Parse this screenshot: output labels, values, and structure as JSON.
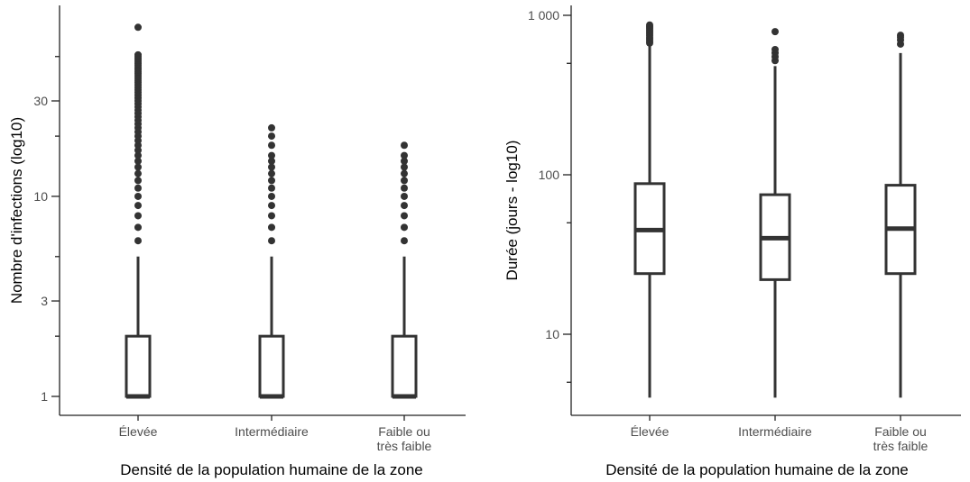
{
  "chart_data": [
    {
      "type": "box",
      "title": "",
      "xlabel": "Densité de la population humaine de la zone",
      "ylabel": "Nombre d'infections (log10)",
      "y_scale": "log10",
      "ylim": [
        0.95,
        90
      ],
      "y_ticks_major": [
        1,
        3,
        10,
        30
      ],
      "y_ticks_major_labels": [
        "1",
        "3",
        "10",
        "30"
      ],
      "y_ticks_minor": [
        2,
        5,
        20,
        50
      ],
      "categories": [
        {
          "label": "Élevée",
          "lines": [
            "Élevée"
          ],
          "min": 1,
          "q1": 1,
          "median": 1,
          "q3": 2,
          "max": 5,
          "outliers": [
            6,
            7,
            8,
            9,
            10,
            11,
            12,
            13,
            14,
            15,
            16,
            17,
            18,
            19,
            20,
            21,
            22,
            23,
            24,
            25,
            26,
            27,
            28,
            29,
            30,
            31,
            32,
            33,
            34,
            35,
            36,
            37,
            38,
            39,
            40,
            41,
            42,
            43,
            44,
            45,
            46,
            47,
            48,
            49,
            50,
            51,
            70
          ]
        },
        {
          "label": "Intermédiaire",
          "lines": [
            "Intermédiaire"
          ],
          "min": 1,
          "q1": 1,
          "median": 1,
          "q3": 2,
          "max": 5,
          "outliers": [
            6,
            7,
            8,
            9,
            10,
            11,
            12,
            13,
            14,
            15,
            16,
            18,
            20,
            22
          ]
        },
        {
          "label": "Faible ou très faible",
          "lines": [
            "Faible ou",
            "très faible"
          ],
          "min": 1,
          "q1": 1,
          "median": 1,
          "q3": 2,
          "max": 5,
          "outliers": [
            6,
            7,
            8,
            9,
            10,
            11,
            12,
            13,
            14,
            15,
            16,
            18
          ]
        }
      ]
    },
    {
      "type": "box",
      "title": "",
      "xlabel": "Densité de la population humaine de la zone",
      "ylabel": "Durée (jours - log10)",
      "y_scale": "log10",
      "ylim": [
        3,
        1050
      ],
      "y_ticks_major": [
        10,
        100,
        1000
      ],
      "y_ticks_major_labels": [
        "10",
        "100",
        "1 000"
      ],
      "y_ticks_minor": [
        5,
        50,
        500
      ],
      "categories": [
        {
          "label": "Élevée",
          "lines": [
            "Élevée"
          ],
          "min": 4,
          "q1": 24,
          "median": 45,
          "q3": 88,
          "max": 650,
          "outliers": [
            670,
            690,
            710,
            730,
            750,
            770,
            790,
            810,
            830,
            850,
            870
          ]
        },
        {
          "label": "Intermédiaire",
          "lines": [
            "Intermédiaire"
          ],
          "min": 4,
          "q1": 22,
          "median": 40,
          "q3": 75,
          "max": 480,
          "outliers": [
            520,
            550,
            580,
            610,
            790
          ]
        },
        {
          "label": "Faible ou très faible",
          "lines": [
            "Faible ou",
            "très faible"
          ],
          "min": 4,
          "q1": 24,
          "median": 46,
          "q3": 86,
          "max": 580,
          "outliers": [
            660,
            700,
            730,
            750
          ]
        }
      ]
    }
  ]
}
